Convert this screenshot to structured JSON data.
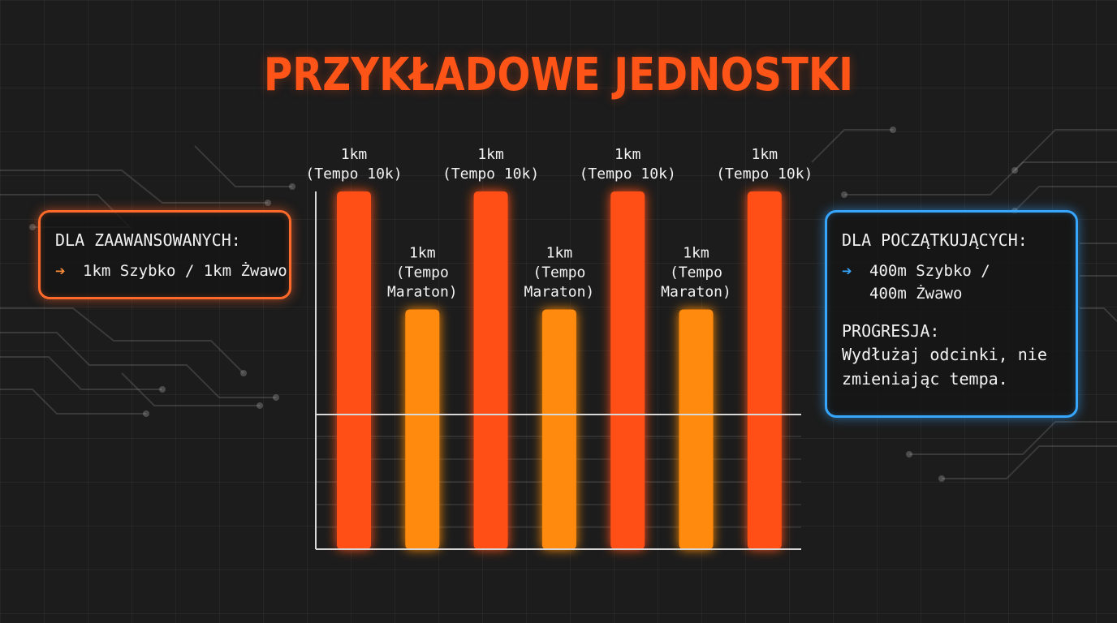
{
  "title": "PRZYKŁADOWE JEDNOSTKI",
  "left_panel": {
    "heading": "DLA ZAAWANSOWANYCH:",
    "item": "1km Szybko / 1km Żwawo",
    "arrow_icon": "arrow-right-icon",
    "accent": "#ff6a2a"
  },
  "right_panel": {
    "heading": "DLA POCZĄTKUJĄCYCH:",
    "item": "400m Szybko / 400m Żwawo",
    "progression_heading": "PROGRESJA:",
    "progression_text": "Wydłużaj odcinki, nie zmieniając tempa.",
    "arrow_icon": "arrow-right-icon",
    "accent": "#37a6ff"
  },
  "chart_data": {
    "type": "bar",
    "title": "PRZYKŁADOWE JEDNOSTKI",
    "xlabel": "",
    "ylabel": "",
    "grid": true,
    "bars": [
      {
        "label": [
          "1km",
          "(Tempo 10k)"
        ],
        "kind": "fast",
        "value": 1.0
      },
      {
        "label": [
          "1km",
          "(Tempo",
          "Maraton)"
        ],
        "kind": "steady",
        "value": 0.67
      },
      {
        "label": [
          "1km",
          "(Tempo 10k)"
        ],
        "kind": "fast",
        "value": 1.0
      },
      {
        "label": [
          "1km",
          "(Tempo",
          "Maraton)"
        ],
        "kind": "steady",
        "value": 0.67
      },
      {
        "label": [
          "1km",
          "(Tempo 10k)"
        ],
        "kind": "fast",
        "value": 1.0
      },
      {
        "label": [
          "1km",
          "(Tempo",
          "Maraton)"
        ],
        "kind": "steady",
        "value": 0.67
      },
      {
        "label": [
          "1km",
          "(Tempo 10k)"
        ],
        "kind": "fast",
        "value": 1.0
      }
    ],
    "ylim": [
      0,
      1
    ],
    "colors": {
      "fast": "#ff4f12",
      "steady": "#ff8a0e",
      "axis": "#d8d8d8",
      "label": "#f2f2f2"
    }
  }
}
